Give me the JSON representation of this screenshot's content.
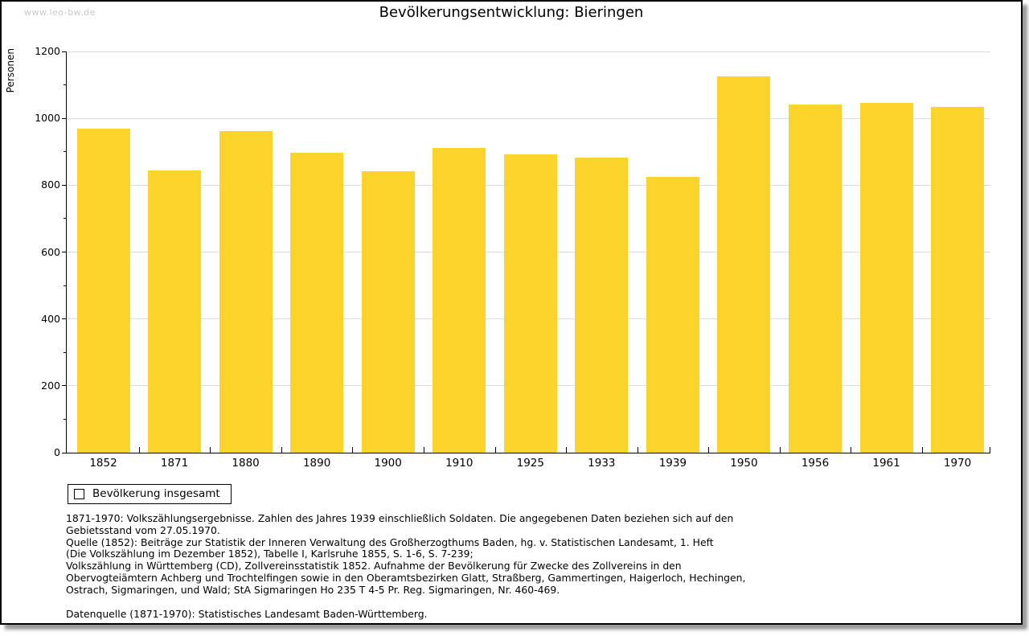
{
  "watermark": "www.leo-bw.de",
  "title": "Bevölkerungsentwicklung: Bieringen",
  "colors": {
    "bar": "#FCD32B",
    "grid": "#DCDCDC",
    "axis": "#000000",
    "watermark": "#C9C9C9",
    "background": "#FFFFFF"
  },
  "chart_data": {
    "type": "bar",
    "title": "Bevölkerungsentwicklung: Bieringen",
    "xlabel": "",
    "ylabel": "Personen",
    "categories": [
      "1852",
      "1871",
      "1880",
      "1890",
      "1900",
      "1910",
      "1925",
      "1933",
      "1939",
      "1950",
      "1956",
      "1961",
      "1970"
    ],
    "values": [
      968,
      843,
      962,
      898,
      842,
      911,
      893,
      882,
      824,
      1125,
      1041,
      1046,
      1035
    ],
    "series_name": "Bevölkerung insgesamt",
    "ylim": [
      0,
      1200
    ],
    "yticks": [
      0,
      200,
      400,
      600,
      800,
      1000,
      1200
    ],
    "ytick_minor_step": 100,
    "grid": true,
    "legend_position": "below-left",
    "bar_color": "#FCD32B"
  },
  "legend": {
    "series_label": "Bevölkerung insgesamt"
  },
  "footer": {
    "lines": [
      "1871-1970: Volkszählungsergebnisse. Zahlen des Jahres 1939 einschließlich Soldaten. Die angegebenen Daten beziehen sich auf den",
      "Gebietsstand vom 27.05.1970.",
      "Quelle (1852): Beiträge zur Statistik der Inneren Verwaltung des Großherzogthums Baden, hg. v. Statistischen Landesamt, 1. Heft",
      "(Die Volkszählung im Dezember 1852), Tabelle I, Karlsruhe 1855, S. 1-6, S. 7-239;",
      "Volkszählung in Württemberg (CD), Zollvereinsstatistik 1852. Aufnahme der Bevölkerung für Zwecke des Zollvereins in den",
      "Obervogteiämtern Achberg und Trochtelfingen sowie in den Oberamtsbezirken Glatt, Straßberg, Gammertingen, Haigerloch, Hechingen,",
      "Ostrach, Sigmaringen, und Wald; StA Sigmaringen Ho 235 T 4-5 Pr. Reg. Sigmaringen, Nr. 460-469."
    ],
    "datasource": "Datenquelle (1871-1970): Statistisches Landesamt Baden-Württemberg."
  }
}
